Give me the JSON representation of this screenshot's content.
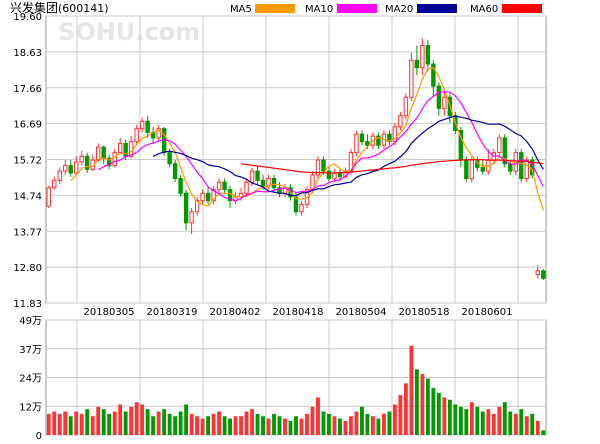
{
  "header": {
    "title": "兴发集团",
    "code": "(600141)"
  },
  "legend": [
    {
      "label": "MA5",
      "color": "#ff9900"
    },
    {
      "label": "MA10",
      "color": "#ff00ff"
    },
    {
      "label": "MA20",
      "color": "#000099"
    },
    {
      "label": "MA60",
      "color": "#ff0000"
    }
  ],
  "watermark": "SOHU.com",
  "colors": {
    "up": "#ff3333",
    "down": "#009900",
    "grid": "#cccccc"
  },
  "chart_data": [
    {
      "type": "candlestick",
      "title": "兴发集团(600141)",
      "ylim": [
        11.83,
        19.6
      ],
      "y_ticks": [
        "19.60",
        "18.63",
        "17.66",
        "16.69",
        "15.72",
        "14.74",
        "13.77",
        "12.80",
        "11.83"
      ],
      "x_ticks": [
        "20180305",
        "20180319",
        "20180402",
        "20180418",
        "20180504",
        "20180518",
        "20180601"
      ],
      "legend_placement": "top",
      "grid": true,
      "candles": [
        [
          14.45,
          14.95,
          14.4,
          15.0
        ],
        [
          14.95,
          15.15,
          14.9,
          15.25
        ],
        [
          15.15,
          15.4,
          15.05,
          15.5
        ],
        [
          15.4,
          15.55,
          15.3,
          15.7
        ],
        [
          15.55,
          15.35,
          15.25,
          15.7
        ],
        [
          15.35,
          15.65,
          15.3,
          15.8
        ],
        [
          15.65,
          15.8,
          15.55,
          15.95
        ],
        [
          15.8,
          15.45,
          15.35,
          15.9
        ],
        [
          15.45,
          15.7,
          15.4,
          15.85
        ],
        [
          15.7,
          16.05,
          15.65,
          16.15
        ],
        [
          16.05,
          15.75,
          15.6,
          16.1
        ],
        [
          15.75,
          15.55,
          15.45,
          15.85
        ],
        [
          15.55,
          15.9,
          15.5,
          16.0
        ],
        [
          15.9,
          16.15,
          15.85,
          16.3
        ],
        [
          16.15,
          15.8,
          15.7,
          16.25
        ],
        [
          15.8,
          16.2,
          15.75,
          16.35
        ],
        [
          16.2,
          16.55,
          16.1,
          16.65
        ],
        [
          16.55,
          16.75,
          16.45,
          16.85
        ],
        [
          16.75,
          16.45,
          16.3,
          16.9
        ],
        [
          16.45,
          16.3,
          16.15,
          16.6
        ],
        [
          16.3,
          16.55,
          16.2,
          16.65
        ],
        [
          16.55,
          15.9,
          15.8,
          16.6
        ],
        [
          15.9,
          15.6,
          15.5,
          16.0
        ],
        [
          15.6,
          15.2,
          15.1,
          15.7
        ],
        [
          15.2,
          14.8,
          14.7,
          15.3
        ],
        [
          14.8,
          14.0,
          13.8,
          14.9
        ],
        [
          14.0,
          14.3,
          13.7,
          14.4
        ],
        [
          14.3,
          14.6,
          14.2,
          14.7
        ],
        [
          14.6,
          14.8,
          14.5,
          14.9
        ],
        [
          14.8,
          14.6,
          14.5,
          14.95
        ],
        [
          14.6,
          14.9,
          14.5,
          15.0
        ],
        [
          14.9,
          15.1,
          14.8,
          15.2
        ],
        [
          15.1,
          14.9,
          14.8,
          15.2
        ],
        [
          14.9,
          14.6,
          14.4,
          15.0
        ],
        [
          14.6,
          14.7,
          14.5,
          14.85
        ],
        [
          14.7,
          14.8,
          14.6,
          14.95
        ],
        [
          14.8,
          15.1,
          14.7,
          15.2
        ],
        [
          15.1,
          15.4,
          15.0,
          15.5
        ],
        [
          15.4,
          15.15,
          15.05,
          15.55
        ],
        [
          15.15,
          15.0,
          14.9,
          15.3
        ],
        [
          15.0,
          15.2,
          14.9,
          15.3
        ],
        [
          15.2,
          14.95,
          14.85,
          15.3
        ],
        [
          14.95,
          14.8,
          14.7,
          15.1
        ],
        [
          14.8,
          14.95,
          14.7,
          15.05
        ],
        [
          14.95,
          14.7,
          14.6,
          15.05
        ],
        [
          14.7,
          14.3,
          14.2,
          14.8
        ],
        [
          14.3,
          14.5,
          14.2,
          14.6
        ],
        [
          14.5,
          14.9,
          14.4,
          15.0
        ],
        [
          14.9,
          15.3,
          14.8,
          15.4
        ],
        [
          15.3,
          15.7,
          15.2,
          15.8
        ],
        [
          15.7,
          15.4,
          15.3,
          15.8
        ],
        [
          15.4,
          15.2,
          15.1,
          15.5
        ],
        [
          15.2,
          15.35,
          15.1,
          15.45
        ],
        [
          15.35,
          15.25,
          15.15,
          15.45
        ],
        [
          15.25,
          15.4,
          15.2,
          15.5
        ],
        [
          15.4,
          15.9,
          15.3,
          16.0
        ],
        [
          15.9,
          16.4,
          15.8,
          16.5
        ],
        [
          16.4,
          16.2,
          16.1,
          16.5
        ],
        [
          16.2,
          16.1,
          16.0,
          16.4
        ],
        [
          16.1,
          16.35,
          16.0,
          16.45
        ],
        [
          16.35,
          16.1,
          16.0,
          16.45
        ],
        [
          16.1,
          16.4,
          16.0,
          16.5
        ],
        [
          16.4,
          16.2,
          16.1,
          16.5
        ],
        [
          16.2,
          16.6,
          16.1,
          16.7
        ],
        [
          16.6,
          16.9,
          16.5,
          17.0
        ],
        [
          16.9,
          17.4,
          16.8,
          17.5
        ],
        [
          17.4,
          18.4,
          17.3,
          18.6
        ],
        [
          18.4,
          18.2,
          18.0,
          18.8
        ],
        [
          18.2,
          18.8,
          18.0,
          19.0
        ],
        [
          18.8,
          18.3,
          18.1,
          18.95
        ],
        [
          18.3,
          17.7,
          17.4,
          18.4
        ],
        [
          17.7,
          17.1,
          16.9,
          17.8
        ],
        [
          17.1,
          17.4,
          16.9,
          17.6
        ],
        [
          17.4,
          16.9,
          16.7,
          17.5
        ],
        [
          16.9,
          16.5,
          16.4,
          17.0
        ],
        [
          16.5,
          15.7,
          15.5,
          16.6
        ],
        [
          15.7,
          15.2,
          15.1,
          15.8
        ],
        [
          15.2,
          15.7,
          15.1,
          15.8
        ],
        [
          15.7,
          15.5,
          15.4,
          15.8
        ],
        [
          15.5,
          15.4,
          15.3,
          15.7
        ],
        [
          15.4,
          15.7,
          15.3,
          16.0
        ],
        [
          15.7,
          15.9,
          15.6,
          16.0
        ],
        [
          15.9,
          16.3,
          15.8,
          16.4
        ],
        [
          16.3,
          15.6,
          15.5,
          16.4
        ],
        [
          15.6,
          15.4,
          15.3,
          15.7
        ],
        [
          15.4,
          15.9,
          15.3,
          16.0
        ],
        [
          15.9,
          15.2,
          15.1,
          16.0
        ],
        [
          15.2,
          15.7,
          15.1,
          15.8
        ],
        [
          15.7,
          15.3,
          15.2,
          15.8
        ],
        [
          12.6,
          12.7,
          12.5,
          12.85
        ],
        [
          12.7,
          12.5,
          12.45,
          12.75
        ]
      ],
      "series": [
        {
          "name": "MA5",
          "color": "#ff9900",
          "values": [
            null,
            null,
            null,
            null,
            15.15,
            15.29,
            15.47,
            15.53,
            15.52,
            15.73,
            15.75,
            15.7,
            15.79,
            15.88,
            15.87,
            15.92,
            16.12,
            16.29,
            16.35,
            16.45,
            16.51,
            16.39,
            16.16,
            15.91,
            15.49,
            15.1,
            14.78,
            14.58,
            14.5,
            14.46,
            14.64,
            14.8,
            14.8,
            14.8,
            14.72,
            14.7,
            14.72,
            14.8,
            14.91,
            14.96,
            14.98,
            15.05,
            15.03,
            14.97,
            14.82,
            14.66,
            14.64,
            14.68,
            14.84,
            15.18,
            15.36,
            15.54,
            15.59,
            15.47,
            15.36,
            15.42,
            15.7,
            15.91,
            16.05,
            16.22,
            16.31,
            16.25,
            16.21,
            16.29,
            16.44,
            16.64,
            17.11,
            17.48,
            17.89,
            18.17,
            18.2,
            17.95,
            17.61,
            17.19,
            16.72,
            16.31,
            16.03,
            15.83,
            15.62,
            15.54,
            15.54,
            15.6,
            15.8,
            15.73,
            15.66,
            15.64,
            15.61,
            15.56,
            15.44,
            14.82,
            14.34
          ]
        },
        {
          "name": "MA10",
          "color": "#ff00ff",
          "values": [
            null,
            null,
            null,
            null,
            null,
            null,
            null,
            null,
            null,
            15.44,
            15.52,
            15.59,
            15.66,
            15.7,
            15.8,
            15.84,
            15.91,
            16.04,
            16.12,
            16.16,
            16.21,
            16.25,
            16.22,
            16.13,
            15.97,
            15.8,
            15.59,
            15.37,
            15.2,
            14.97,
            14.87,
            14.79,
            14.69,
            14.65,
            14.59,
            14.67,
            14.76,
            14.8,
            14.86,
            14.84,
            14.84,
            14.88,
            14.92,
            14.94,
            14.89,
            14.82,
            14.85,
            14.85,
            14.9,
            15.0,
            15.01,
            15.09,
            15.14,
            15.16,
            15.27,
            15.39,
            15.62,
            15.75,
            15.76,
            15.79,
            15.86,
            15.97,
            16.06,
            16.17,
            16.33,
            16.47,
            16.68,
            16.84,
            17.09,
            17.31,
            17.42,
            17.53,
            17.55,
            17.54,
            17.44,
            17.25,
            16.99,
            16.72,
            16.41,
            16.13,
            15.93,
            15.81,
            15.81,
            15.68,
            15.59,
            15.59,
            15.71,
            15.68,
            15.59,
            15.28,
            14.98
          ]
        },
        {
          "name": "MA20",
          "color": "#000099",
          "values": [
            null,
            null,
            null,
            null,
            null,
            null,
            null,
            null,
            null,
            null,
            null,
            null,
            null,
            null,
            null,
            null,
            null,
            null,
            null,
            15.8,
            15.87,
            15.92,
            15.94,
            15.91,
            15.88,
            15.82,
            15.75,
            15.71,
            15.66,
            15.57,
            15.54,
            15.52,
            15.46,
            15.39,
            15.28,
            15.24,
            15.18,
            15.08,
            15.03,
            14.97,
            14.86,
            14.83,
            14.8,
            14.8,
            14.74,
            14.74,
            14.81,
            14.82,
            14.88,
            14.92,
            14.92,
            14.98,
            15.03,
            15.05,
            15.08,
            15.1,
            15.23,
            15.3,
            15.33,
            15.39,
            15.43,
            15.53,
            15.6,
            15.67,
            15.79,
            15.93,
            16.15,
            16.3,
            16.43,
            16.55,
            16.64,
            16.75,
            16.8,
            16.85,
            16.89,
            16.86,
            16.83,
            16.78,
            16.75,
            16.72,
            16.67,
            16.67,
            16.68,
            16.61,
            16.52,
            16.42,
            16.35,
            16.2,
            16.0,
            15.7,
            15.45
          ]
        },
        {
          "name": "MA60",
          "color": "#ff0000",
          "values": [
            null,
            null,
            null,
            null,
            null,
            null,
            null,
            null,
            null,
            null,
            null,
            null,
            null,
            null,
            null,
            null,
            null,
            null,
            null,
            null,
            null,
            null,
            null,
            null,
            null,
            null,
            null,
            null,
            null,
            null,
            null,
            null,
            null,
            null,
            null,
            15.6,
            15.58,
            15.56,
            15.54,
            15.52,
            15.5,
            15.48,
            15.46,
            15.44,
            15.42,
            15.4,
            15.38,
            15.37,
            15.36,
            15.36,
            15.36,
            15.35,
            15.35,
            15.36,
            15.36,
            15.37,
            15.39,
            15.4,
            15.42,
            15.43,
            15.45,
            15.46,
            15.48,
            15.49,
            15.51,
            15.53,
            15.56,
            15.58,
            15.6,
            15.62,
            15.64,
            15.66,
            15.67,
            15.68,
            15.69,
            15.7,
            15.71,
            15.71,
            15.71,
            15.71,
            15.7,
            15.7,
            15.7,
            15.69,
            15.68,
            15.68,
            15.67,
            15.66,
            15.64,
            15.62,
            15.6
          ]
        }
      ]
    },
    {
      "type": "bar",
      "title": "",
      "ylim": [
        0,
        49
      ],
      "y_ticks": [
        "49万",
        "37万",
        "24万",
        "12万",
        "0"
      ],
      "grid": true,
      "values": [
        9,
        10,
        9,
        10,
        8,
        10,
        9,
        11,
        8,
        12,
        11,
        9,
        10,
        13,
        10,
        12,
        14,
        13,
        11,
        8,
        10,
        11,
        9,
        8,
        10,
        13,
        9,
        8,
        7,
        8,
        9,
        10,
        8,
        7,
        8,
        8,
        10,
        11,
        9,
        8,
        7,
        9,
        8,
        7,
        6,
        8,
        7,
        9,
        12,
        16,
        10,
        9,
        8,
        7,
        6,
        8,
        10,
        12,
        9,
        8,
        7,
        9,
        10,
        13,
        17,
        22,
        38,
        28,
        26,
        24,
        20,
        18,
        16,
        15,
        13,
        12,
        11,
        14,
        12,
        10,
        11,
        9,
        12,
        14,
        10,
        9,
        11,
        8,
        9,
        6,
        2
      ],
      "directions": [
        "up",
        "up",
        "up",
        "up",
        "down",
        "up",
        "up",
        "down",
        "up",
        "up",
        "down",
        "down",
        "up",
        "up",
        "down",
        "up",
        "up",
        "up",
        "down",
        "down",
        "up",
        "down",
        "down",
        "down",
        "down",
        "down",
        "up",
        "up",
        "up",
        "down",
        "up",
        "up",
        "down",
        "down",
        "up",
        "up",
        "up",
        "up",
        "down",
        "down",
        "up",
        "down",
        "down",
        "up",
        "down",
        "down",
        "up",
        "up",
        "up",
        "up",
        "down",
        "down",
        "up",
        "down",
        "up",
        "up",
        "up",
        "down",
        "down",
        "up",
        "down",
        "up",
        "down",
        "up",
        "up",
        "up",
        "up",
        "down",
        "up",
        "down",
        "down",
        "down",
        "up",
        "down",
        "down",
        "down",
        "down",
        "up",
        "down",
        "down",
        "up",
        "up",
        "up",
        "down",
        "down",
        "up",
        "down",
        "up",
        "down",
        "up",
        "down"
      ]
    }
  ]
}
